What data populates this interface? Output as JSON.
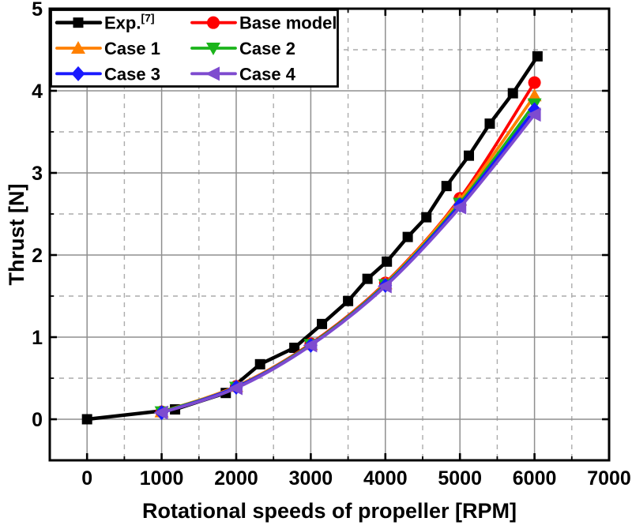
{
  "page": {
    "background": "#FFFFFF"
  },
  "chart_data": {
    "type": "line",
    "title": "",
    "xlabel": "Rotational speeds of propeller [RPM]",
    "ylabel": "Thrust [N]",
    "xlim": [
      -500,
      7000
    ],
    "ylim": [
      -0.5,
      5.0
    ],
    "x_major_ticks": [
      0,
      1000,
      2000,
      3000,
      4000,
      5000,
      6000,
      7000
    ],
    "x_minor_step": 500,
    "y_major_ticks": [
      0,
      1,
      2,
      3,
      4,
      5
    ],
    "y_minor_step": 0.5,
    "grid": {
      "major_style": "solid",
      "major_color": "#8F8F8F",
      "minor_style": "dashed",
      "minor_color": "#ACACAC"
    },
    "legend": {
      "position": "top-left",
      "columns": 2,
      "border_color": "#000000",
      "background": "#FFFFFF"
    },
    "series": [
      {
        "name": "Exp.",
        "superscript": "[7]",
        "color": "#000000",
        "marker": "square",
        "line_width": 4.5,
        "smooth": false,
        "x": [
          0,
          1180,
          1860,
          2320,
          2780,
          3150,
          3500,
          3760,
          4020,
          4300,
          4550,
          4820,
          5120,
          5400,
          5710,
          6040
        ],
        "y": [
          0.0,
          0.12,
          0.32,
          0.67,
          0.87,
          1.16,
          1.44,
          1.71,
          1.92,
          2.22,
          2.46,
          2.84,
          3.21,
          3.6,
          3.97,
          4.42
        ]
      },
      {
        "name": "Base model",
        "superscript": "",
        "color": "#FF0000",
        "marker": "circle",
        "line_width": 3.8,
        "smooth": true,
        "x": [
          1000,
          2000,
          3000,
          4000,
          5000,
          6000
        ],
        "y": [
          0.09,
          0.4,
          0.92,
          1.66,
          2.69,
          4.1
        ]
      },
      {
        "name": "Case 1",
        "superscript": "",
        "color": "#FF8000",
        "marker": "triangle-up",
        "line_width": 3.8,
        "smooth": true,
        "x": [
          1000,
          2000,
          3000,
          4000,
          5000,
          6000
        ],
        "y": [
          0.09,
          0.4,
          0.91,
          1.65,
          2.67,
          3.94
        ]
      },
      {
        "name": "Case 2",
        "superscript": "",
        "color": "#1BB41B",
        "marker": "triangle-down",
        "line_width": 3.8,
        "smooth": true,
        "x": [
          1000,
          2000,
          3000,
          4000,
          5000,
          6000
        ],
        "y": [
          0.09,
          0.39,
          0.91,
          1.64,
          2.63,
          3.84
        ]
      },
      {
        "name": "Case 3",
        "superscript": "",
        "color": "#1A1AFF",
        "marker": "diamond",
        "line_width": 3.8,
        "smooth": true,
        "x": [
          1000,
          2000,
          3000,
          4000,
          5000,
          6000
        ],
        "y": [
          0.08,
          0.39,
          0.9,
          1.63,
          2.61,
          3.77
        ]
      },
      {
        "name": "Case 4",
        "superscript": "",
        "color": "#7E4BCF",
        "marker": "triangle-left",
        "line_width": 3.8,
        "smooth": true,
        "x": [
          1000,
          2000,
          3000,
          4000,
          5000,
          6000
        ],
        "y": [
          0.08,
          0.38,
          0.9,
          1.62,
          2.58,
          3.71
        ]
      }
    ]
  }
}
